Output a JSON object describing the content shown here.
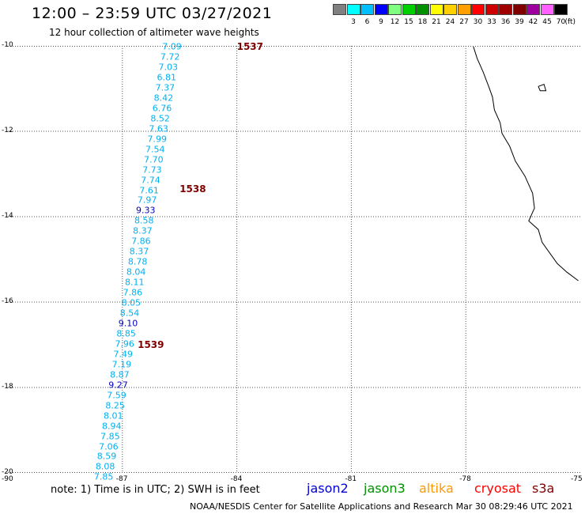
{
  "header": {
    "title": "12:00 – 23:59 UTC 03/27/2021",
    "subtitle": "12 hour collection of altimeter wave heights"
  },
  "legend": {
    "items": [
      {
        "color": "#808080",
        "label": ""
      },
      {
        "color": "#00ffff",
        "label": "3"
      },
      {
        "color": "#00bfff",
        "label": "6"
      },
      {
        "color": "#0000ff",
        "label": "9"
      },
      {
        "color": "#80ff80",
        "label": "12"
      },
      {
        "color": "#00d000",
        "label": "15"
      },
      {
        "color": "#009000",
        "label": "18"
      },
      {
        "color": "#ffff00",
        "label": "21"
      },
      {
        "color": "#ffd000",
        "label": "24"
      },
      {
        "color": "#ffa000",
        "label": "27"
      },
      {
        "color": "#ff0000",
        "label": "30"
      },
      {
        "color": "#d00000",
        "label": "33"
      },
      {
        "color": "#a00000",
        "label": "36"
      },
      {
        "color": "#800000",
        "label": "39"
      },
      {
        "color": "#a000a0",
        "label": "42"
      },
      {
        "color": "#ff60ff",
        "label": "45"
      },
      {
        "color": "#000000",
        "label": "70"
      }
    ],
    "unit": "(ft)"
  },
  "chart_data": {
    "type": "scatter",
    "xlim": [
      -90,
      -75
    ],
    "ylim": [
      -20,
      -10
    ],
    "x_ticks": [
      -90,
      -87,
      -84,
      -81,
      -78,
      -75
    ],
    "x_tick_labels": [
      "-90",
      "-87",
      "-84",
      "-81",
      "-78",
      "-75"
    ],
    "y_ticks": [
      -10,
      -12,
      -14,
      -16,
      -18,
      -20
    ],
    "y_tick_labels": [
      "-10",
      "-12",
      "-14",
      "-16",
      "-18",
      "-20"
    ],
    "grid": true,
    "points": [
      {
        "x": -85.7,
        "y": -10.02,
        "label": "7.09",
        "color": "#00b0f0"
      },
      {
        "x": -85.75,
        "y": -10.26,
        "label": "7.72",
        "color": "#00b0f0"
      },
      {
        "x": -85.8,
        "y": -10.5,
        "label": "7.03",
        "color": "#00b0f0"
      },
      {
        "x": -85.84,
        "y": -10.74,
        "label": "6.81",
        "color": "#00b0f0"
      },
      {
        "x": -85.88,
        "y": -10.98,
        "label": "7.37",
        "color": "#00b0f0"
      },
      {
        "x": -85.92,
        "y": -11.22,
        "label": "8.42",
        "color": "#00b0f0"
      },
      {
        "x": -85.96,
        "y": -11.46,
        "label": "6.76",
        "color": "#00b0f0"
      },
      {
        "x": -86.01,
        "y": -11.7,
        "label": "8.52",
        "color": "#00b0f0"
      },
      {
        "x": -86.05,
        "y": -11.94,
        "label": "7.63",
        "color": "#00b0f0"
      },
      {
        "x": -86.09,
        "y": -12.18,
        "label": "7.99",
        "color": "#00b0f0"
      },
      {
        "x": -86.14,
        "y": -12.42,
        "label": "7.54",
        "color": "#00b0f0"
      },
      {
        "x": -86.18,
        "y": -12.66,
        "label": "7.70",
        "color": "#00b0f0"
      },
      {
        "x": -86.22,
        "y": -12.9,
        "label": "7.73",
        "color": "#00b0f0"
      },
      {
        "x": -86.26,
        "y": -13.14,
        "label": "7.74",
        "color": "#00b0f0"
      },
      {
        "x": -86.3,
        "y": -13.38,
        "label": "7.61",
        "color": "#00b0f0"
      },
      {
        "x": -86.35,
        "y": -13.62,
        "label": "7.97",
        "color": "#00b0f0"
      },
      {
        "x": -86.39,
        "y": -13.86,
        "label": "9.33",
        "color": "#0000c0"
      },
      {
        "x": -86.43,
        "y": -14.1,
        "label": "8.58",
        "color": "#00b0f0"
      },
      {
        "x": -86.47,
        "y": -14.34,
        "label": "8.37",
        "color": "#00b0f0"
      },
      {
        "x": -86.51,
        "y": -14.58,
        "label": "7.86",
        "color": "#00b0f0"
      },
      {
        "x": -86.56,
        "y": -14.82,
        "label": "8.37",
        "color": "#00b0f0"
      },
      {
        "x": -86.6,
        "y": -15.06,
        "label": "8.78",
        "color": "#00b0f0"
      },
      {
        "x": -86.64,
        "y": -15.3,
        "label": "8.04",
        "color": "#00b0f0"
      },
      {
        "x": -86.68,
        "y": -15.54,
        "label": "8.11",
        "color": "#00b0f0"
      },
      {
        "x": -86.73,
        "y": -15.78,
        "label": "7.86",
        "color": "#00b0f0"
      },
      {
        "x": -86.77,
        "y": -16.02,
        "label": "8.05",
        "color": "#00b0f0"
      },
      {
        "x": -86.81,
        "y": -16.26,
        "label": "8.54",
        "color": "#00b0f0"
      },
      {
        "x": -86.85,
        "y": -16.5,
        "label": "9.10",
        "color": "#0000c0"
      },
      {
        "x": -86.9,
        "y": -16.74,
        "label": "8.85",
        "color": "#00b0f0"
      },
      {
        "x": -86.94,
        "y": -16.98,
        "label": "7.96",
        "color": "#00b0f0"
      },
      {
        "x": -86.98,
        "y": -17.22,
        "label": "7.49",
        "color": "#00b0f0"
      },
      {
        "x": -87.02,
        "y": -17.46,
        "label": "7.19",
        "color": "#00b0f0"
      },
      {
        "x": -87.07,
        "y": -17.7,
        "label": "8.87",
        "color": "#00b0f0"
      },
      {
        "x": -87.11,
        "y": -17.94,
        "label": "9.27",
        "color": "#0000c0"
      },
      {
        "x": -87.15,
        "y": -18.18,
        "label": "7.59",
        "color": "#00b0f0"
      },
      {
        "x": -87.19,
        "y": -18.42,
        "label": "8.25",
        "color": "#00b0f0"
      },
      {
        "x": -87.24,
        "y": -18.66,
        "label": "8.01",
        "color": "#00b0f0"
      },
      {
        "x": -87.28,
        "y": -18.9,
        "label": "8.94",
        "color": "#00b0f0"
      },
      {
        "x": -87.32,
        "y": -19.14,
        "label": "7.85",
        "color": "#00b0f0"
      },
      {
        "x": -87.36,
        "y": -19.38,
        "label": "7.06",
        "color": "#00b0f0"
      },
      {
        "x": -87.41,
        "y": -19.62,
        "label": "8.59",
        "color": "#00b0f0"
      },
      {
        "x": -87.45,
        "y": -19.86,
        "label": "8.08",
        "color": "#00b0f0"
      },
      {
        "x": -87.49,
        "y": -20.1,
        "label": "7.85",
        "color": "#00b0f0"
      }
    ],
    "revolutions": [
      {
        "x": -84.0,
        "y": -10.02,
        "label": "1537"
      },
      {
        "x": -85.5,
        "y": -13.35,
        "label": "1538"
      },
      {
        "x": -86.6,
        "y": -17.0,
        "label": "1539"
      }
    ],
    "coastline": [
      [
        -77.8,
        -10.02
      ],
      [
        -77.7,
        -10.3
      ],
      [
        -77.55,
        -10.6
      ],
      [
        -77.4,
        -10.95
      ],
      [
        -77.3,
        -11.2
      ],
      [
        -77.25,
        -11.5
      ],
      [
        -77.1,
        -11.8
      ],
      [
        -77.05,
        -12.05
      ],
      [
        -76.85,
        -12.35
      ],
      [
        -76.7,
        -12.7
      ],
      [
        -76.45,
        -13.05
      ],
      [
        -76.25,
        -13.45
      ],
      [
        -76.2,
        -13.8
      ],
      [
        -76.35,
        -14.1
      ],
      [
        -76.1,
        -14.3
      ],
      [
        -76.0,
        -14.6
      ],
      [
        -75.8,
        -14.85
      ],
      [
        -75.6,
        -15.1
      ],
      [
        -75.35,
        -15.3
      ],
      [
        -75.05,
        -15.5
      ]
    ],
    "island": [
      [
        -76.1,
        -10.95
      ],
      [
        -75.95,
        -10.9
      ],
      [
        -75.9,
        -11.05
      ],
      [
        -76.05,
        -11.05
      ],
      [
        -76.1,
        -10.95
      ]
    ]
  },
  "satellites": [
    {
      "label": "jason2",
      "color": "#0000d0"
    },
    {
      "label": "jason3",
      "color": "#009000"
    },
    {
      "label": "altika",
      "color": "#ff9900"
    },
    {
      "label": "cryosat",
      "color": "#ff0000"
    },
    {
      "label": "s3a",
      "color": "#800000"
    }
  ],
  "note": "note: 1) Time is in UTC; 2) SWH is in feet",
  "footer": "NOAA/NESDIS Center for Satellite Applications and Research    Mar 30 08:29:46 UTC 2021"
}
